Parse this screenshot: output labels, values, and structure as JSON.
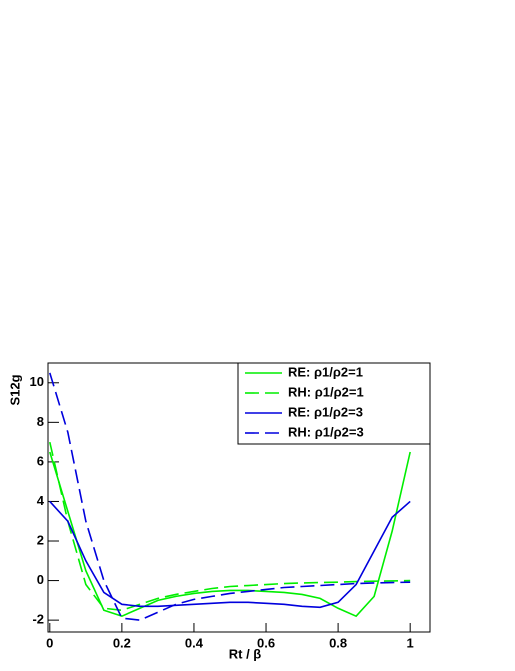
{
  "chart_data": {
    "type": "line",
    "x_label": "Rt / β",
    "y_label": "S12g",
    "x": [
      0,
      0.05,
      0.1,
      0.15,
      0.2,
      0.25,
      0.3,
      0.35,
      0.4,
      0.45,
      0.5,
      0.55,
      0.6,
      0.65,
      0.7,
      0.75,
      0.8,
      0.85,
      0.9,
      0.95,
      1
    ],
    "series": [
      {
        "name": "RE: ρ1/ρ2=1",
        "color": "#00ee00",
        "dash": false,
        "values": [
          6.5,
          3.5,
          0.5,
          -1.5,
          -1.8,
          -1.4,
          -1.0,
          -0.8,
          -0.65,
          -0.55,
          -0.5,
          -0.5,
          -0.55,
          -0.6,
          -0.7,
          -0.9,
          -1.4,
          -1.8,
          -0.8,
          2.5,
          6.5
        ]
      },
      {
        "name": "RH: ρ1/ρ2=1",
        "color": "#00ee00",
        "dash": true,
        "values": [
          7.0,
          3.0,
          -0.2,
          -1.4,
          -1.5,
          -1.2,
          -0.9,
          -0.7,
          -0.55,
          -0.4,
          -0.3,
          -0.25,
          -0.2,
          -0.15,
          -0.12,
          -0.1,
          -0.08,
          -0.05,
          -0.03,
          -0.02,
          0
        ]
      },
      {
        "name": "RE: ρ1/ρ2=3",
        "color": "#0000dd",
        "dash": false,
        "values": [
          4.0,
          3.0,
          1.0,
          -0.6,
          -1.2,
          -1.3,
          -1.3,
          -1.25,
          -1.2,
          -1.15,
          -1.1,
          -1.1,
          -1.15,
          -1.2,
          -1.3,
          -1.35,
          -1.1,
          -0.2,
          1.5,
          3.2,
          4.0
        ]
      },
      {
        "name": "RH: ρ1/ρ2=3",
        "color": "#0000dd",
        "dash": true,
        "values": [
          10.5,
          7.5,
          3.0,
          0.0,
          -1.9,
          -2.0,
          -1.6,
          -1.2,
          -0.95,
          -0.8,
          -0.65,
          -0.55,
          -0.45,
          -0.35,
          -0.3,
          -0.25,
          -0.2,
          -0.15,
          -0.12,
          -0.1,
          -0.08
        ]
      }
    ],
    "xlim": [
      -0.005,
      1.055
    ],
    "ylim": [
      -2.6,
      11.0
    ],
    "xticks": [
      0,
      0.2,
      0.4,
      0.6,
      0.8,
      1
    ],
    "yticks": [
      -2,
      0,
      2,
      4,
      6,
      8,
      10
    ],
    "legend": "top-right"
  }
}
